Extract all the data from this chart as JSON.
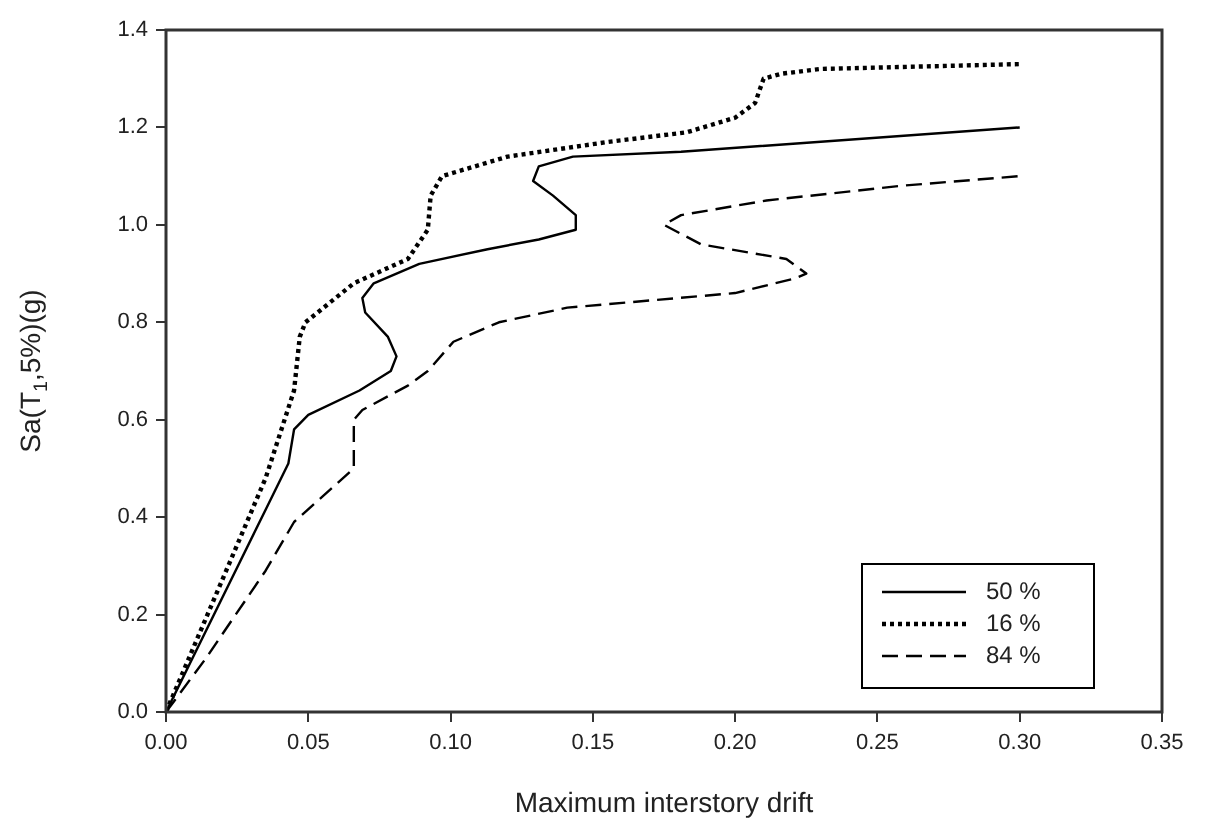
{
  "chart_data": {
    "type": "line",
    "xlabel": "Maximum interstory drift",
    "ylabel": "Sa(T$_{1}$,5%)(g)",
    "xlim": [
      0,
      0.35
    ],
    "xticks": [
      {
        "value": 0,
        "label": "0.00"
      },
      {
        "value": 0.05,
        "label": "0.05"
      },
      {
        "value": 0.1,
        "label": "0.10"
      },
      {
        "value": 0.15,
        "label": "0.15"
      },
      {
        "value": 0.2,
        "label": "0.20"
      },
      {
        "value": 0.25,
        "label": "0.25"
      },
      {
        "value": 0.3,
        "label": "0.30"
      },
      {
        "value": 0.35,
        "label": "0.35"
      }
    ],
    "ylim": [
      0,
      1.4
    ],
    "yticks": [
      {
        "value": 0,
        "label": "0.0"
      },
      {
        "value": 0.2,
        "label": "0.2"
      },
      {
        "value": 0.4,
        "label": "0.4"
      },
      {
        "value": 0.6,
        "label": "0.6"
      },
      {
        "value": 0.8,
        "label": "0.8"
      },
      {
        "value": 1,
        "label": "1.0"
      },
      {
        "value": 1.2,
        "label": "1.2"
      },
      {
        "value": 1.4,
        "label": "1.4"
      }
    ],
    "grid": false,
    "legend": "bottom right",
    "marker": "none",
    "series": [
      {
        "name": "50 %",
        "color": "#000000",
        "line_style": "solid",
        "x": [
          0,
          0.043,
          0.045,
          0.05,
          0.068,
          0.079,
          0.081,
          0.078,
          0.07,
          0.069,
          0.073,
          0.089,
          0.113,
          0.131,
          0.144,
          0.144,
          0.136,
          0.129,
          0.131,
          0.143,
          0.181,
          0.3
        ],
        "values": [
          0,
          0.51,
          0.58,
          0.61,
          0.66,
          0.7,
          0.73,
          0.77,
          0.82,
          0.85,
          0.88,
          0.92,
          0.95,
          0.97,
          0.99,
          1.02,
          1.06,
          1.09,
          1.12,
          1.14,
          1.15,
          1.2
        ]
      },
      {
        "name": "16 %",
        "color": "#000000",
        "line_style": "dotted",
        "x": [
          0,
          0.035,
          0.045,
          0.047,
          0.049,
          0.066,
          0.085,
          0.092,
          0.093,
          0.097,
          0.12,
          0.155,
          0.183,
          0.2,
          0.207,
          0.21,
          0.216,
          0.23,
          0.3
        ],
        "values": [
          0,
          0.48,
          0.66,
          0.77,
          0.8,
          0.88,
          0.93,
          0.99,
          1.06,
          1.1,
          1.14,
          1.17,
          1.19,
          1.22,
          1.25,
          1.3,
          1.31,
          1.32,
          1.33
        ]
      },
      {
        "name": "84 %",
        "color": "#000000",
        "line_style": "dashed",
        "x": [
          0,
          0.014,
          0.035,
          0.045,
          0.066,
          0.066,
          0.069,
          0.085,
          0.092,
          0.101,
          0.117,
          0.141,
          0.2,
          0.221,
          0.225,
          0.218,
          0.188,
          0.175,
          0.181,
          0.211,
          0.258,
          0.3
        ],
        "values": [
          0,
          0.11,
          0.29,
          0.39,
          0.5,
          0.6,
          0.62,
          0.67,
          0.7,
          0.76,
          0.8,
          0.83,
          0.86,
          0.89,
          0.9,
          0.93,
          0.96,
          1.0,
          1.02,
          1.05,
          1.08,
          1.1
        ]
      }
    ]
  }
}
